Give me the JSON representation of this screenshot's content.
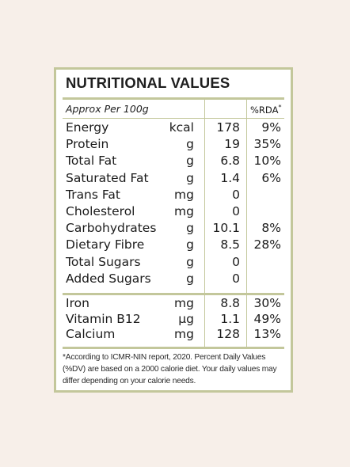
{
  "panel": {
    "title": "NUTRITIONAL VALUES",
    "basis": "Approx Per 100g",
    "rda_header": "%RDA",
    "rda_marker": "*"
  },
  "nutrients": [
    {
      "name": "Energy",
      "unit": "kcal",
      "value": "178",
      "rda": "9%"
    },
    {
      "name": "Protein",
      "unit": "g",
      "value": "19",
      "rda": "35%"
    },
    {
      "name": "Total Fat",
      "unit": "g",
      "value": "6.8",
      "rda": "10%"
    },
    {
      "name": "Saturated Fat",
      "unit": "g",
      "value": "1.4",
      "rda": "6%"
    },
    {
      "name": "Trans Fat",
      "unit": "mg",
      "value": "0",
      "rda": ""
    },
    {
      "name": "Cholesterol",
      "unit": "mg",
      "value": "0",
      "rda": ""
    },
    {
      "name": "Carbohydrates",
      "unit": "g",
      "value": "10.1",
      "rda": "8%"
    },
    {
      "name": "Dietary Fibre",
      "unit": "g",
      "value": "8.5",
      "rda": "28%"
    },
    {
      "name": "Total Sugars",
      "unit": "g",
      "value": "0",
      "rda": ""
    },
    {
      "name": "Added Sugars",
      "unit": "g",
      "value": "0",
      "rda": ""
    }
  ],
  "minerals": [
    {
      "name": "Iron",
      "unit": "mg",
      "value": "8.8",
      "rda": "30%"
    },
    {
      "name": "Vitamin B12",
      "unit": "µg",
      "value": "1.1",
      "rda": "49%"
    },
    {
      "name": "Calcium",
      "unit": "mg",
      "value": "128",
      "rda": "13%"
    }
  ],
  "footnote": "*According to ICMR-NIN report, 2020. Percent Daily Values (%DV) are based on a 2000 calorie diet. Your daily values may differ depending on your calorie needs.",
  "colors": {
    "background": "#f7efe9",
    "border": "#c3c79b",
    "text": "#1b1b1b"
  }
}
